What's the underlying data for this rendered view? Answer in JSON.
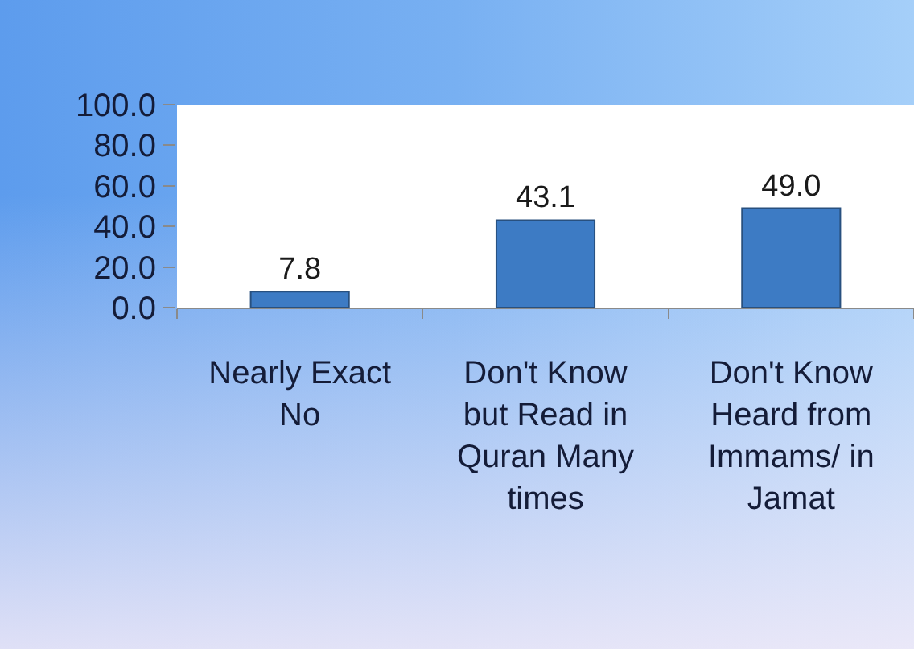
{
  "chart_data": {
    "type": "bar",
    "categories": [
      "Nearly Exact No",
      "Don't Know but Read in Quran Many times",
      "Don't Know Heard from Immams/ in Jamat"
    ],
    "values": [
      7.8,
      43.1,
      49.0
    ],
    "value_labels": [
      "7.8",
      "43.1",
      "49.0"
    ],
    "color": "#3d7bc4",
    "ylim": [
      0,
      100
    ],
    "yticks": [
      {
        "value": 0,
        "label": "0.0"
      },
      {
        "value": 20,
        "label": "20.0"
      },
      {
        "value": 40,
        "label": "40.0"
      },
      {
        "value": 60,
        "label": "60.0"
      },
      {
        "value": 80,
        "label": "80.0"
      },
      {
        "value": 100,
        "label": "100.0"
      }
    ]
  }
}
